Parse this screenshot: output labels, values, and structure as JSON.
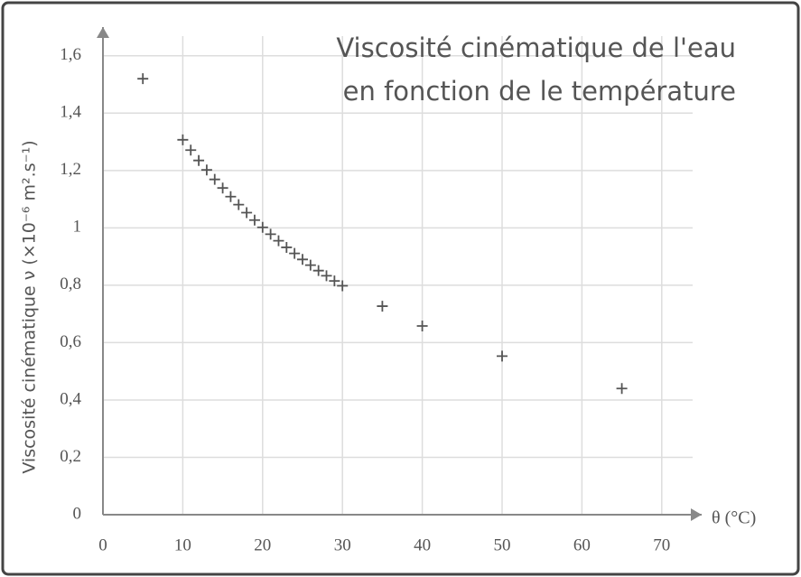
{
  "chart_data": {
    "type": "scatter",
    "title": [
      "Viscosité cinématique de l'eau",
      "en fonction de le température"
    ],
    "x_label": "θ (°C)",
    "y_label": "Viscosité cinématique ν (×10⁻⁶ m².s⁻¹)",
    "series": [
      {
        "name": "ν",
        "color": "#555555",
        "x": [
          5,
          10,
          11,
          12,
          13,
          14,
          15,
          16,
          17,
          18,
          19,
          20,
          21,
          22,
          23,
          24,
          25,
          26,
          27,
          28,
          29,
          30,
          35,
          40,
          50,
          65
        ],
        "values": [
          1.52,
          1.307,
          1.271,
          1.235,
          1.202,
          1.169,
          1.139,
          1.109,
          1.081,
          1.053,
          1.027,
          1.002,
          0.978,
          0.955,
          0.932,
          0.911,
          0.89,
          0.87,
          0.851,
          0.833,
          0.815,
          0.798,
          0.727,
          0.658,
          0.553,
          0.44
        ]
      }
    ],
    "xlim": [
      0,
      75
    ],
    "ylim": [
      0,
      1.7
    ],
    "xticks": [
      0,
      10,
      20,
      30,
      40,
      50,
      60,
      70
    ],
    "yticks": [
      0,
      {
        "value": 0.2,
        "label": "0,2"
      },
      {
        "value": 0.4,
        "label": "0,4"
      },
      {
        "value": 0.6,
        "label": "0,6"
      },
      {
        "value": 0.8,
        "label": "0,8"
      },
      1,
      {
        "value": 1.2,
        "label": "1,2"
      },
      {
        "value": 1.4,
        "label": "1,4"
      },
      {
        "value": 1.6,
        "label": "1,6"
      }
    ],
    "grid": true
  }
}
